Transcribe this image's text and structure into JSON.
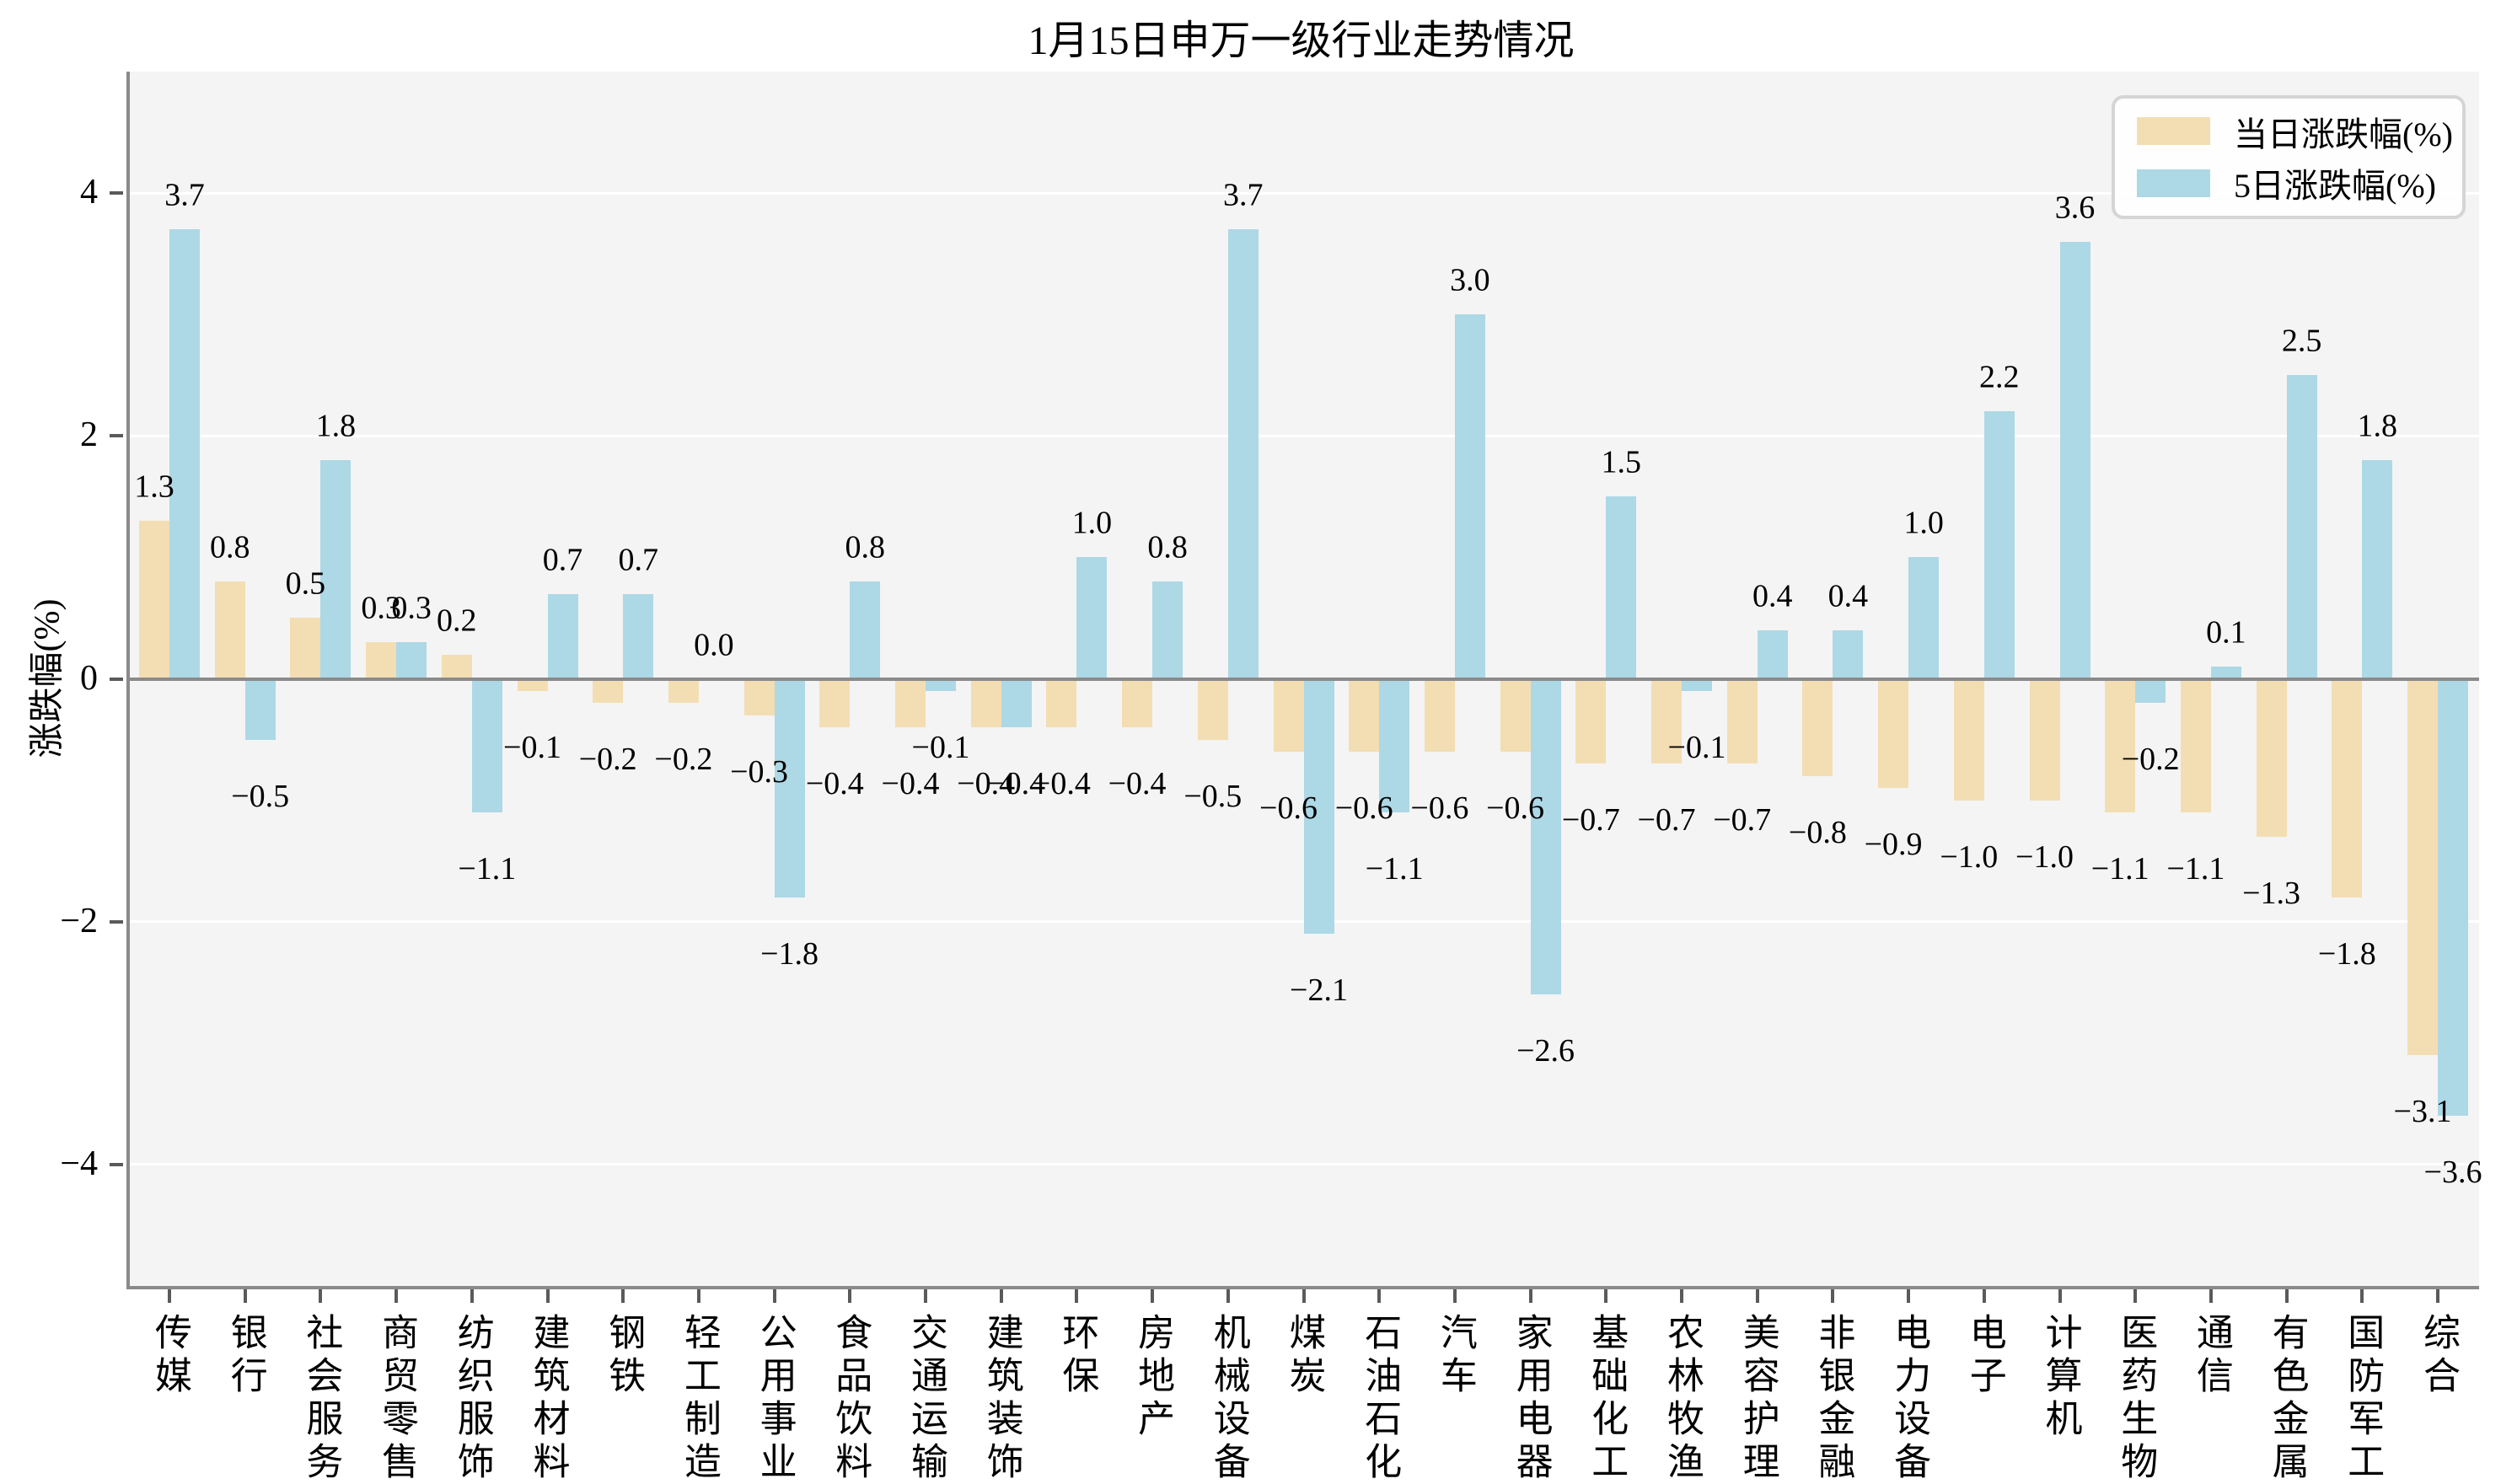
{
  "chart_data": {
    "type": "bar",
    "title": "1月15日申万一级行业走势情况",
    "xlabel": "",
    "ylabel": "涨跌幅(%)",
    "categories": [
      "传媒",
      "银行",
      "社会服务",
      "商贸零售",
      "纺织服饰",
      "建筑材料",
      "钢铁",
      "轻工制造",
      "公用事业",
      "食品饮料",
      "交通运输",
      "建筑装饰",
      "环保",
      "房地产",
      "机械设备",
      "煤炭",
      "石油石化",
      "汽车",
      "家用电器",
      "基础化工",
      "农林牧渔",
      "美容护理",
      "非银金融",
      "电力设备",
      "电子",
      "计算机",
      "医药生物",
      "通信",
      "有色金属",
      "国防军工",
      "综合"
    ],
    "series": [
      {
        "name": "当日涨跌幅(%)",
        "color": "#F3DEB3",
        "values": [
          1.3,
          0.8,
          0.5,
          0.3,
          0.2,
          -0.1,
          -0.2,
          -0.2,
          -0.3,
          -0.4,
          -0.4,
          -0.4,
          -0.4,
          -0.4,
          -0.5,
          -0.6,
          -0.6,
          -0.6,
          -0.6,
          -0.7,
          -0.7,
          -0.7,
          -0.8,
          -0.9,
          -1.0,
          -1.0,
          -1.1,
          -1.1,
          -1.3,
          -1.8,
          -3.1
        ]
      },
      {
        "name": "5日涨跌幅(%)",
        "color": "#ADD8E6",
        "values": [
          3.7,
          -0.5,
          1.8,
          0.3,
          -1.1,
          0.7,
          0.7,
          0.0,
          -1.8,
          0.8,
          -0.1,
          -0.4,
          1.0,
          0.8,
          3.7,
          -2.1,
          -1.1,
          3.0,
          -2.6,
          1.5,
          -0.1,
          0.4,
          0.4,
          1.0,
          2.2,
          3.6,
          -0.2,
          0.1,
          2.5,
          1.8,
          -3.6
        ]
      }
    ],
    "yticks": [
      -4,
      -2,
      0,
      2,
      4
    ],
    "ylim": [
      -5,
      5
    ],
    "grid": true,
    "value_labels": true,
    "legend_position": "upper right",
    "colors": {
      "plot_background": "#f4f4f4",
      "figure_background": "#ffffff",
      "gridline": "#ffffff",
      "spine": "#8a8a8a",
      "zero_line": "#8a8a8a",
      "text": "#000000"
    }
  }
}
